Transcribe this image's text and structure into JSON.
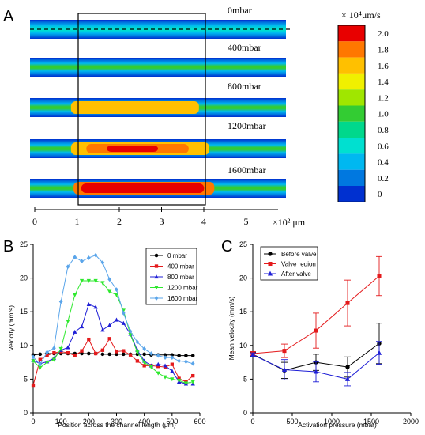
{
  "panels": {
    "a": {
      "label": "A"
    },
    "b": {
      "label": "B"
    },
    "c": {
      "label": "C"
    }
  },
  "chart_data": [
    {
      "type": "heatmap",
      "panel": "A",
      "rows": [
        "0mbar",
        "400mbar",
        "800mbar",
        "1200mbar",
        "1600mbar"
      ],
      "x_ticks": [
        "0",
        "1",
        "2",
        "3",
        "4",
        "5"
      ],
      "x_unit": "×10² μm",
      "x_range": [
        0,
        5.8
      ],
      "highlight_region_x": [
        1,
        4
      ],
      "colorbar": {
        "title": "× 10⁴μm/s",
        "ticks": [
          "2.0",
          "1.8",
          "1.6",
          "1.4",
          "1.2",
          "1.0",
          "0.8",
          "0.6",
          "0.4",
          "0.2",
          "0"
        ],
        "colors": [
          "#e80000",
          "#ff7800",
          "#ffc000",
          "#f0f000",
          "#a0e600",
          "#33cc33",
          "#00d88c",
          "#00e0d0",
          "#00b8f0",
          "#0078e0",
          "#0030d0"
        ]
      },
      "channel_core_colors": [
        "#00e0d0",
        "#33cc33",
        "#a0e600",
        "#ffc000",
        "#e80000"
      ]
    },
    {
      "type": "line",
      "panel": "B",
      "xlabel": "Position across the channel length (μm)",
      "ylabel": "Velocity (mm/s)",
      "xlim": [
        0,
        600
      ],
      "ylim": [
        0,
        25
      ],
      "x_ticks": [
        0,
        100,
        200,
        300,
        400,
        500,
        600
      ],
      "y_ticks": [
        0,
        5,
        10,
        15,
        20,
        25
      ],
      "legend_position": "top-right",
      "x": [
        0,
        25,
        50,
        75,
        100,
        125,
        150,
        175,
        200,
        225,
        250,
        275,
        300,
        325,
        350,
        375,
        400,
        425,
        450,
        475,
        500,
        525,
        550,
        575
      ],
      "series": [
        {
          "name": "0 mbar",
          "color": "#000000",
          "marker": "circle",
          "values": [
            8.6,
            8.7,
            8.8,
            8.8,
            8.8,
            8.8,
            8.8,
            8.8,
            8.8,
            8.8,
            8.7,
            8.7,
            8.7,
            8.7,
            8.7,
            8.7,
            8.7,
            8.6,
            8.6,
            8.6,
            8.6,
            8.5,
            8.5,
            8.5
          ]
        },
        {
          "name": "400 mbar",
          "color": "#e41a1c",
          "marker": "square",
          "values": [
            4.1,
            7.9,
            8.5,
            8.9,
            9.1,
            8.9,
            8.5,
            9.2,
            10.9,
            8.8,
            9.3,
            11.0,
            9.1,
            9.2,
            8.6,
            7.7,
            7.0,
            7.0,
            6.9,
            6.8,
            7.2,
            5.1,
            4.6,
            5.5
          ]
        },
        {
          "name": "800 mbar",
          "color": "#1f1fd6",
          "marker": "triangle-up",
          "values": [
            7.8,
            7.3,
            7.6,
            8.1,
            9.3,
            9.7,
            12.0,
            12.8,
            16.1,
            15.7,
            12.3,
            13.0,
            13.8,
            13.3,
            11.7,
            9.3,
            7.7,
            7.0,
            7.2,
            7.0,
            6.2,
            4.6,
            4.3,
            4.3
          ]
        },
        {
          "name": "1200 mbar",
          "color": "#2ee82e",
          "marker": "triangle-down",
          "values": [
            7.7,
            6.7,
            7.5,
            7.9,
            9.5,
            13.6,
            17.5,
            19.6,
            19.6,
            19.6,
            19.3,
            18.0,
            17.5,
            15.2,
            11.6,
            9.0,
            7.5,
            6.8,
            5.9,
            5.3,
            5.0,
            4.8,
            4.4,
            4.6
          ]
        },
        {
          "name": "1600 mbar",
          "color": "#5aa5ea",
          "marker": "diamond",
          "values": [
            8.3,
            7.2,
            9.0,
            9.6,
            16.5,
            21.7,
            23.1,
            22.5,
            23.0,
            23.4,
            22.3,
            19.8,
            18.3,
            14.8,
            12.1,
            10.5,
            9.5,
            8.8,
            8.5,
            8.2,
            8.2,
            7.7,
            7.6,
            7.3
          ]
        }
      ]
    },
    {
      "type": "line",
      "panel": "C",
      "xlabel": "Activation pressure (mbar)",
      "ylabel": "Mean velocity (mm/s)",
      "xlim": [
        0,
        2000
      ],
      "ylim": [
        0,
        25
      ],
      "x_ticks": [
        0,
        500,
        1000,
        1500,
        2000
      ],
      "y_ticks": [
        0,
        5,
        10,
        15,
        20,
        25
      ],
      "legend_position": "top-left",
      "x": [
        0,
        400,
        800,
        1200,
        1600
      ],
      "series": [
        {
          "name": "Before valve",
          "color": "#000000",
          "marker": "circle",
          "values": [
            8.7,
            6.3,
            7.5,
            6.8,
            10.3
          ],
          "err": [
            0.3,
            1.2,
            1.2,
            1.5,
            3.0
          ]
        },
        {
          "name": "Valve region",
          "color": "#e41a1c",
          "marker": "square",
          "values": [
            8.8,
            9.2,
            12.2,
            16.3,
            20.3
          ],
          "err": [
            0.3,
            1.0,
            2.6,
            3.4,
            2.9
          ]
        },
        {
          "name": "After valve",
          "color": "#1f1fd6",
          "marker": "triangle-up",
          "values": [
            8.6,
            6.4,
            6.1,
            5.0,
            8.9
          ],
          "err": [
            0.3,
            1.5,
            1.5,
            1.0,
            1.7
          ]
        }
      ]
    }
  ]
}
